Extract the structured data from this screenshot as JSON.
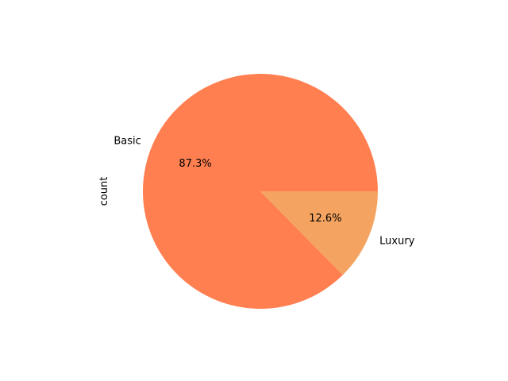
{
  "chart_data": {
    "type": "pie",
    "title": "",
    "xlabel": "",
    "ylabel": "count",
    "slices": [
      {
        "label": "Basic",
        "value": 87.3,
        "pct_label": "87.3%",
        "color": "#ff7f50"
      },
      {
        "label": "Luxury",
        "value": 12.6,
        "pct_label": "12.6%",
        "color": "#f4a460"
      }
    ]
  }
}
